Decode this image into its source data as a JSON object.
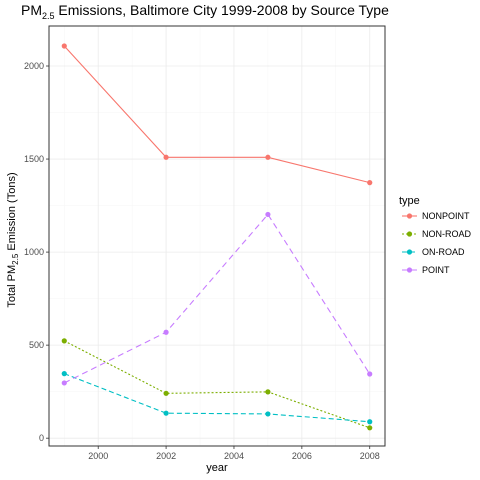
{
  "chart_data": {
    "type": "line",
    "title": "PM2.5 Emissions, Baltimore City 1999-2008 by Source Type",
    "title_parts": {
      "main": "PM",
      "sub": "2.5",
      "rest": " Emissions, Baltimore City 1999-2008 by Source Type"
    },
    "xlabel": "year",
    "ylabel": "Total PM2.5 Emission (Tons)",
    "ylabel_parts": {
      "main": "Total PM",
      "sub": "2.5",
      "rest": " Emission (Tons)"
    },
    "x": [
      1999,
      2002,
      2005,
      2008
    ],
    "xlim": [
      1998.55,
      2008.45
    ],
    "ylim": [
      -42,
      2215
    ],
    "x_ticks": [
      2000,
      2002,
      2004,
      2006,
      2008
    ],
    "y_ticks": [
      0,
      500,
      1000,
      1500,
      2000
    ],
    "grid": true,
    "legend": {
      "title": "type",
      "position": "right"
    },
    "series": [
      {
        "name": "NONPOINT",
        "values": [
          2107.6,
          1509.5,
          1509.5,
          1373.2
        ],
        "color": "#F8766D",
        "dash": ""
      },
      {
        "name": "NON-ROAD",
        "values": [
          522.9,
          241.0,
          248.9,
          55.8
        ],
        "color": "#7CAE00",
        "dash": "2,2"
      },
      {
        "name": "ON-ROAD",
        "values": [
          346.8,
          134.3,
          130.4,
          88.3
        ],
        "color": "#00BFC4",
        "dash": "5,3"
      },
      {
        "name": "POINT",
        "values": [
          296.8,
          569.3,
          1202.5,
          344.98
        ],
        "color": "#C77CFF",
        "dash": "6,4"
      }
    ]
  }
}
